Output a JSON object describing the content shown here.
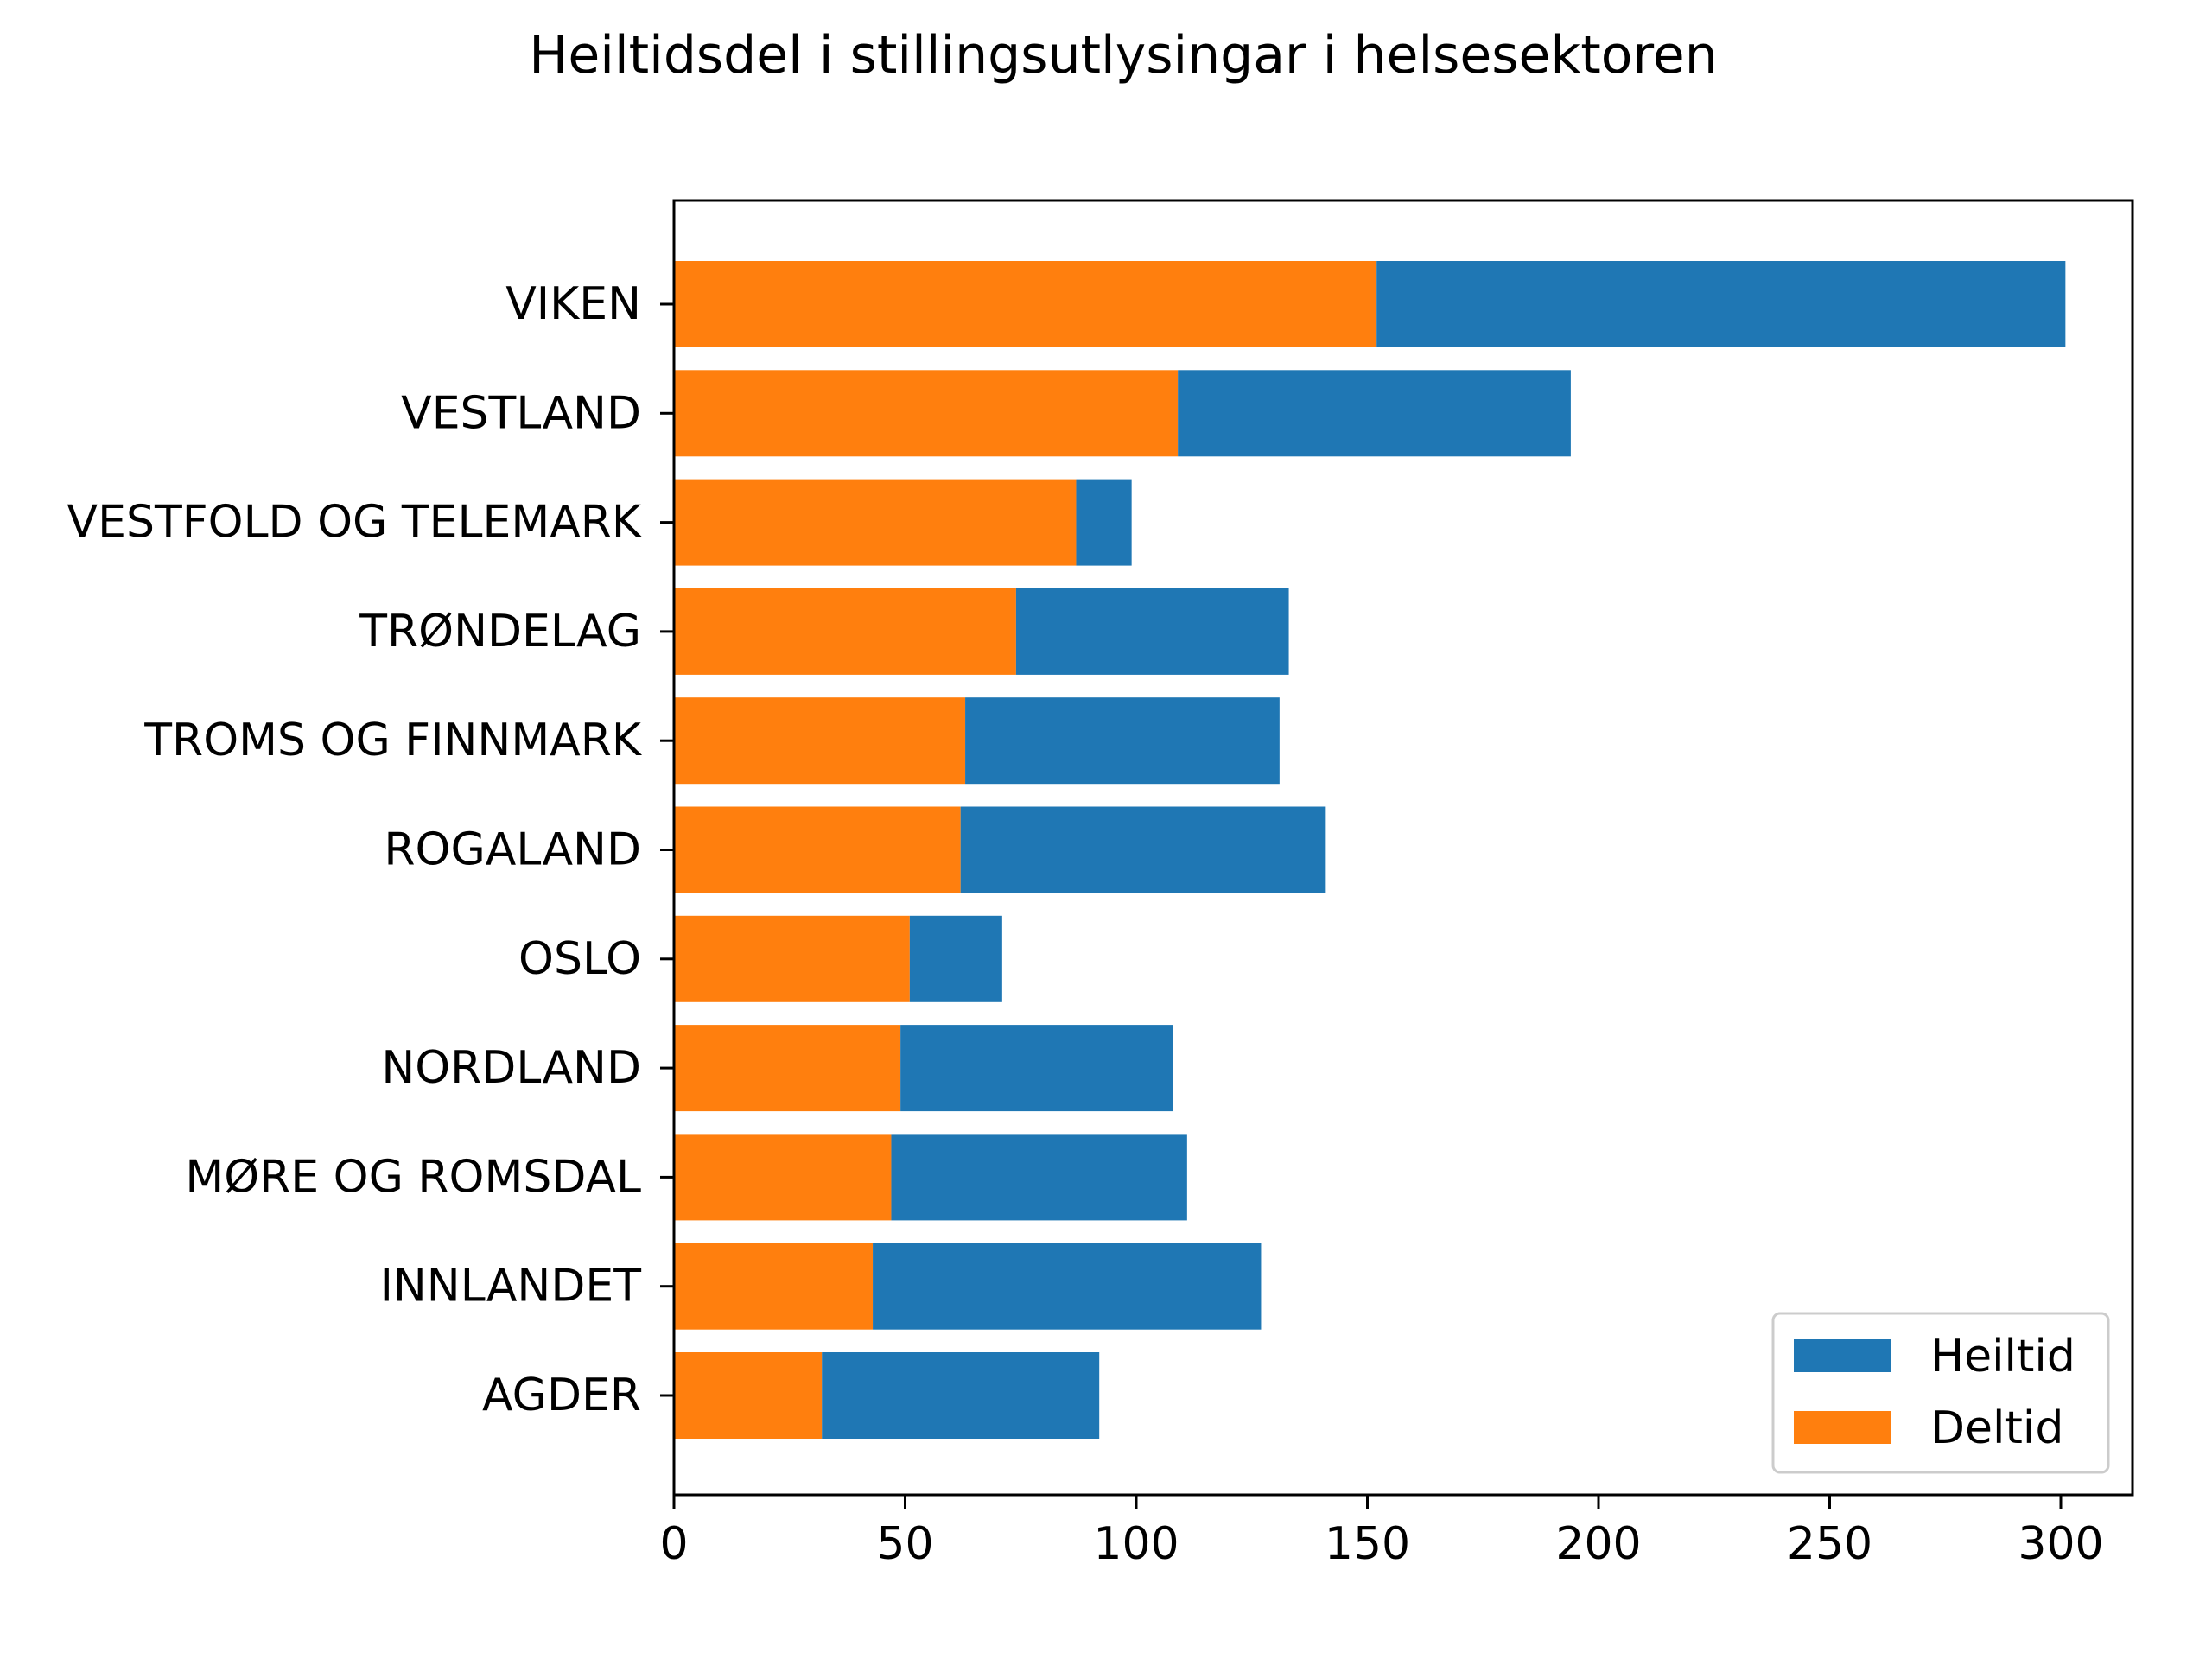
{
  "chart_data": {
    "type": "bar",
    "orientation": "horizontal",
    "stacked": true,
    "title": "Heiltidsdel i stillingsutlysingar i helsesektoren",
    "xlabel": "",
    "ylabel": "",
    "categories": [
      "VIKEN",
      "VESTLAND",
      "VESTFOLD OG TELEMARK",
      "TRØNDELAG",
      "TROMS OG FINNMARK",
      "ROGALAND",
      "OSLO",
      "NORDLAND",
      "MØRE OG ROMSDAL",
      "INNLANDET",
      "AGDER"
    ],
    "series": [
      {
        "name": "Heiltid",
        "color": "#1f77b4",
        "values": [
          149,
          85,
          12,
          59,
          68,
          79,
          20,
          59,
          64,
          84,
          60
        ]
      },
      {
        "name": "Deltid",
        "color": "#ff7f0e",
        "values": [
          152,
          109,
          87,
          74,
          63,
          62,
          51,
          49,
          47,
          43,
          32
        ]
      }
    ],
    "xlim": [
      0,
      316
    ],
    "xticks": [
      0,
      50,
      100,
      150,
      200,
      250,
      300
    ],
    "grid": false,
    "legend_position": "lower-right"
  }
}
